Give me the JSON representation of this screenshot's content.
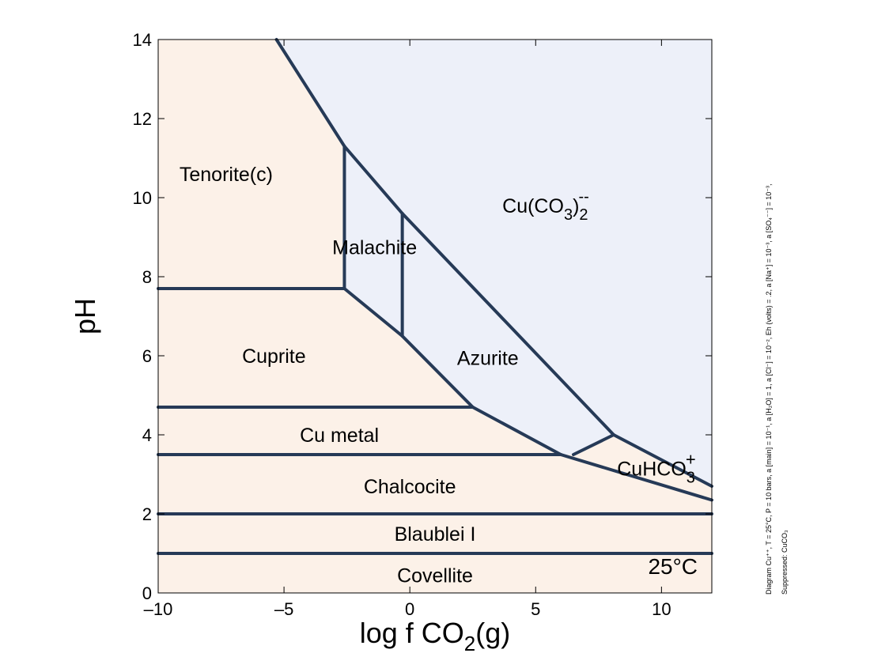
{
  "chart_data": {
    "type": "phase-diagram",
    "xlabel": "log f CO",
    "xlabel_sub": "2",
    "xlabel_suffix": "(g)",
    "ylabel": "pH",
    "xlim": [
      -10,
      12
    ],
    "ylim": [
      0,
      14
    ],
    "x_ticks": [
      -10,
      -5,
      0,
      5,
      10
    ],
    "x_tick_labels": [
      "–10",
      "–5",
      "0",
      "5",
      "10"
    ],
    "y_ticks": [
      0,
      2,
      4,
      6,
      8,
      10,
      12,
      14
    ],
    "y_tick_labels": [
      "0",
      "2",
      "4",
      "6",
      "8",
      "10",
      "12",
      "14"
    ],
    "grid": false,
    "temperature_label": "25°C",
    "colors": {
      "mineral_field": "#fcf1e8",
      "aqueous_field": "#edf0f9",
      "boundary_line": "#263a57"
    },
    "aqueous_region": [
      [
        -5.3,
        14
      ],
      [
        12,
        14
      ],
      [
        12,
        2.7
      ],
      [
        8.1,
        4.0
      ],
      [
        6.5,
        3.5
      ],
      [
        6.0,
        3.5
      ],
      [
        2.5,
        4.7
      ],
      [
        -0.3,
        6.5
      ],
      [
        -2.6,
        7.7
      ],
      [
        -2.6,
        11.3
      ]
    ],
    "boundaries": [
      [
        [
          -5.3,
          14
        ],
        [
          -2.6,
          11.3
        ],
        [
          -0.3,
          9.6
        ],
        [
          8.1,
          4.0
        ],
        [
          12,
          2.7
        ]
      ],
      [
        [
          -2.6,
          11.3
        ],
        [
          -2.6,
          7.7
        ]
      ],
      [
        [
          -0.3,
          9.6
        ],
        [
          -0.3,
          6.5
        ]
      ],
      [
        [
          -10,
          7.7
        ],
        [
          -2.6,
          7.7
        ],
        [
          -0.3,
          6.5
        ],
        [
          2.5,
          4.7
        ],
        [
          6.0,
          3.5
        ]
      ],
      [
        [
          -10,
          4.7
        ],
        [
          2.5,
          4.7
        ]
      ],
      [
        [
          -10,
          3.5
        ],
        [
          6.0,
          3.5
        ]
      ],
      [
        [
          6.0,
          3.5
        ],
        [
          12,
          2.35
        ]
      ],
      [
        [
          6.5,
          3.5
        ],
        [
          8.1,
          4.0
        ]
      ],
      [
        [
          -10,
          2.0
        ],
        [
          12,
          2.0
        ]
      ],
      [
        [
          -10,
          1.0
        ],
        [
          12,
          1.0
        ]
      ]
    ],
    "fields": [
      {
        "name": "Tenorite(c)",
        "x": -7.3,
        "y": 10.6
      },
      {
        "name": "Malachite",
        "x": -1.4,
        "y": 8.75
      },
      {
        "name": "Cuprite",
        "x": -5.4,
        "y": 6.0
      },
      {
        "name": "Azurite",
        "x": 3.1,
        "y": 5.95
      },
      {
        "name": "Cu metal",
        "x": -2.8,
        "y": 4.0
      },
      {
        "name": "Chalcocite",
        "x": 0.0,
        "y": 2.7
      },
      {
        "name": "Blaublei I",
        "x": 1.0,
        "y": 1.5
      },
      {
        "name": "Covellite",
        "x": 1.0,
        "y": 0.45
      }
    ],
    "aqueous_species": [
      {
        "base": "Cu(CO",
        "sub": "3",
        "close": ")",
        "sub2": "2",
        "sup": "--",
        "x": 5.4,
        "y": 9.8
      },
      {
        "base": "CuHCO",
        "sub": "3",
        "sup": "+",
        "x": 9.8,
        "y": 3.15
      }
    ],
    "side_note_lines": [
      "Diagram Cu⁺⁺, T = 25°C, P = 10 bars, a [main] = 10⁻¹, a [H₂O] = 1, a [Cl⁻] = 10⁻², Eh (volts) = .2, a [Na⁺] = 10⁻³, a [SO₄⁻⁻] = 10⁻³,",
      "Suppressed: CuCO₃"
    ]
  }
}
